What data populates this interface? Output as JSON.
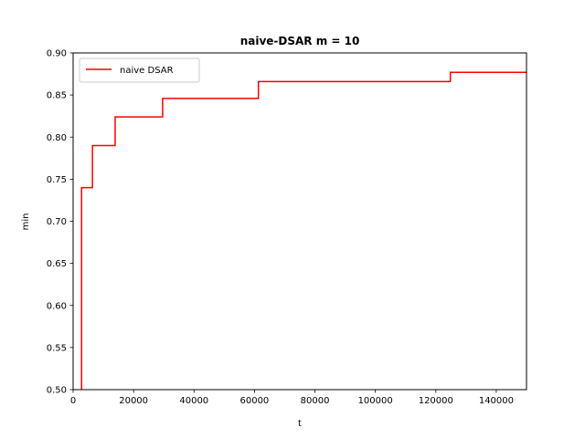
{
  "chart_data": {
    "type": "line",
    "title": "naive-DSAR m = 10",
    "xlabel": "t",
    "ylabel": "min",
    "xlim": [
      0,
      150000
    ],
    "ylim": [
      0.5,
      0.9
    ],
    "xticks": [
      0,
      20000,
      40000,
      60000,
      80000,
      100000,
      120000,
      140000
    ],
    "yticks": [
      0.5,
      0.55,
      0.6,
      0.65,
      0.7,
      0.75,
      0.8,
      0.85,
      0.9
    ],
    "xtick_labels": [
      "0",
      "20000",
      "40000",
      "60000",
      "80000",
      "100000",
      "120000",
      "140000"
    ],
    "ytick_labels": [
      "0.50",
      "0.55",
      "0.60",
      "0.65",
      "0.70",
      "0.75",
      "0.80",
      "0.85",
      "0.90"
    ],
    "grid": false,
    "legend_position": "upper-left",
    "series": [
      {
        "name": "naive DSAR",
        "color": "#ff0000",
        "step": "post",
        "x": [
          2800,
          6400,
          13900,
          29600,
          61300,
          124800,
          150000
        ],
        "y": [
          0.74,
          0.79,
          0.824,
          0.846,
          0.866,
          0.877,
          0.877
        ]
      }
    ]
  }
}
